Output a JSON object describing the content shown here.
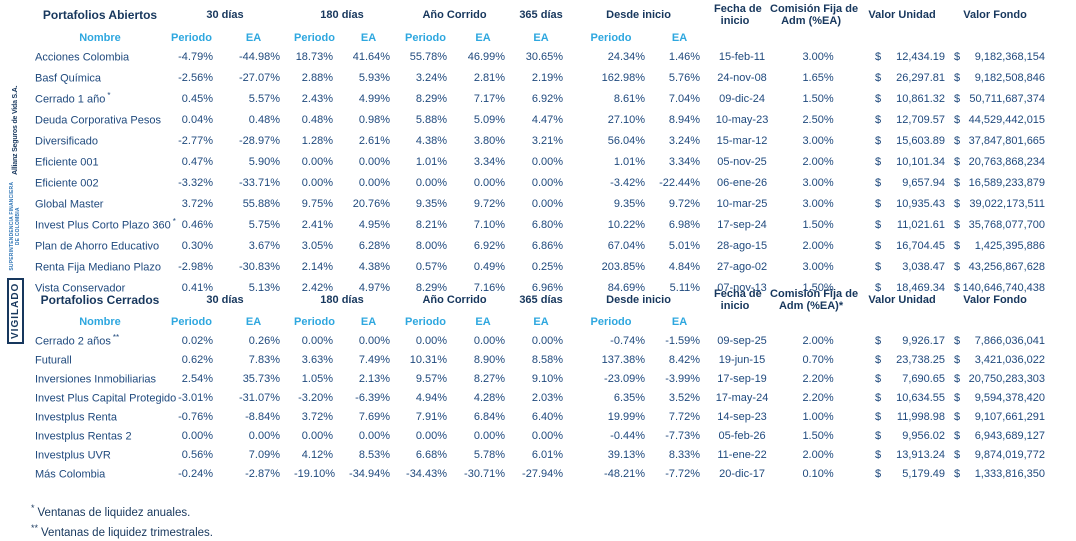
{
  "currency_symbol": "$",
  "colors": {
    "header_navy": "#17375D",
    "data_navy": "#1F497D",
    "accent_blue": "#2EA7DF",
    "brand_blue": "#2E74B5"
  },
  "sidebar": {
    "vigilado": "VIGILADO",
    "superintendencia_line1": "SUPERINTENDENCIA FINANCIERA",
    "superintendencia_line2": "DE COLOMBIA",
    "company": "Allianz Seguros de Vida S.A."
  },
  "footnotes": [
    {
      "mark": "*",
      "text": "Ventanas de liquidez anuales."
    },
    {
      "mark": "**",
      "text": "Ventanas de liquidez trimestrales."
    }
  ],
  "tables": [
    {
      "title": "Portafolios Abiertos",
      "group_headers": {
        "d30": "30 días",
        "d180": "180 días",
        "ano_corrido": "Año Corrido",
        "d365": "365 días",
        "desde_inicio": "Desde inicio",
        "fecha_line1": "Fecha de",
        "fecha_line2": "inicio",
        "comision_line1": "Comisión Fija de",
        "comision_line2": "Adm (%EA)",
        "valor_unidad": "Valor Unidad",
        "valor_fondo": "Valor Fondo"
      },
      "sub_headers": {
        "nombre": "Nombre",
        "periodo": "Periodo",
        "ea": "EA"
      },
      "rows": [
        {
          "name": "Acciones Colombia",
          "mark": "",
          "pct": [
            "-4.79%",
            "-44.98%",
            "18.73%",
            "41.64%",
            "55.78%",
            "46.99%",
            "30.65%",
            "24.34%",
            "1.46%"
          ],
          "fecha_inicio": "15-feb-11",
          "comision": "3.00%",
          "valor_unidad": "12,434.19",
          "valor_fondo": "9,182,368,154"
        },
        {
          "name": "Basf Química",
          "mark": "",
          "pct": [
            "-2.56%",
            "-27.07%",
            "2.88%",
            "5.93%",
            "3.24%",
            "2.81%",
            "2.19%",
            "162.98%",
            "5.76%"
          ],
          "fecha_inicio": "24-nov-08",
          "comision": "1.65%",
          "valor_unidad": "26,297.81",
          "valor_fondo": "9,182,508,846"
        },
        {
          "name": "Cerrado 1 año",
          "mark": "*",
          "pct": [
            "0.45%",
            "5.57%",
            "2.43%",
            "4.99%",
            "8.29%",
            "7.17%",
            "6.92%",
            "8.61%",
            "7.04%"
          ],
          "fecha_inicio": "09-dic-24",
          "comision": "1.50%",
          "valor_unidad": "10,861.32",
          "valor_fondo": "50,711,687,374"
        },
        {
          "name": "Deuda Corporativa Pesos",
          "mark": "",
          "pct": [
            "0.04%",
            "0.48%",
            "0.48%",
            "0.98%",
            "5.88%",
            "5.09%",
            "4.47%",
            "27.10%",
            "8.94%"
          ],
          "fecha_inicio": "10-may-23",
          "comision": "2.50%",
          "valor_unidad": "12,709.57",
          "valor_fondo": "44,529,442,015"
        },
        {
          "name": "Diversificado",
          "mark": "",
          "pct": [
            "-2.77%",
            "-28.97%",
            "1.28%",
            "2.61%",
            "4.38%",
            "3.80%",
            "3.21%",
            "56.04%",
            "3.24%"
          ],
          "fecha_inicio": "15-mar-12",
          "comision": "3.00%",
          "valor_unidad": "15,603.89",
          "valor_fondo": "37,847,801,665"
        },
        {
          "name": "Eficiente 001",
          "mark": "",
          "pct": [
            "0.47%",
            "5.90%",
            "0.00%",
            "0.00%",
            "1.01%",
            "3.34%",
            "0.00%",
            "1.01%",
            "3.34%"
          ],
          "fecha_inicio": "05-nov-25",
          "comision": "2.00%",
          "valor_unidad": "10,101.34",
          "valor_fondo": "20,763,868,234"
        },
        {
          "name": "Eficiente 002",
          "mark": "",
          "pct": [
            "-3.32%",
            "-33.71%",
            "0.00%",
            "0.00%",
            "0.00%",
            "0.00%",
            "0.00%",
            "-3.42%",
            "-22.44%"
          ],
          "fecha_inicio": "06-ene-26",
          "comision": "3.00%",
          "valor_unidad": "9,657.94",
          "valor_fondo": "16,589,233,879"
        },
        {
          "name": "Global Master",
          "mark": "",
          "pct": [
            "3.72%",
            "55.88%",
            "9.75%",
            "20.76%",
            "9.35%",
            "9.72%",
            "0.00%",
            "9.35%",
            "9.72%"
          ],
          "fecha_inicio": "10-mar-25",
          "comision": "3.00%",
          "valor_unidad": "10,935.43",
          "valor_fondo": "39,022,173,511"
        },
        {
          "name": "Invest Plus Corto Plazo 360",
          "mark": "*",
          "pct": [
            "0.46%",
            "5.75%",
            "2.41%",
            "4.95%",
            "8.21%",
            "7.10%",
            "6.80%",
            "10.22%",
            "6.98%"
          ],
          "fecha_inicio": "17-sep-24",
          "comision": "1.50%",
          "valor_unidad": "11,021.61",
          "valor_fondo": "35,768,077,700"
        },
        {
          "name": "Plan de Ahorro Educativo",
          "mark": "",
          "pct": [
            "0.30%",
            "3.67%",
            "3.05%",
            "6.28%",
            "8.00%",
            "6.92%",
            "6.86%",
            "67.04%",
            "5.01%"
          ],
          "fecha_inicio": "28-ago-15",
          "comision": "2.00%",
          "valor_unidad": "16,704.45",
          "valor_fondo": "1,425,395,886"
        },
        {
          "name": "Renta Fija Mediano Plazo",
          "mark": "",
          "pct": [
            "-2.98%",
            "-30.83%",
            "2.14%",
            "4.38%",
            "0.57%",
            "0.49%",
            "0.25%",
            "203.85%",
            "4.84%"
          ],
          "fecha_inicio": "27-ago-02",
          "comision": "3.00%",
          "valor_unidad": "3,038.47",
          "valor_fondo": "43,256,867,628"
        },
        {
          "name": "Vista Conservador",
          "mark": "",
          "pct": [
            "0.41%",
            "5.13%",
            "2.42%",
            "4.97%",
            "8.29%",
            "7.16%",
            "6.96%",
            "84.69%",
            "5.11%"
          ],
          "fecha_inicio": "07-nov-13",
          "comision": "1.50%",
          "valor_unidad": "18,469.34",
          "valor_fondo": "140,646,740,438"
        }
      ]
    },
    {
      "title": "Portafolios Cerrados",
      "group_headers": {
        "d30": "30 días",
        "d180": "180 días",
        "ano_corrido": "Año Corrido",
        "d365": "365 días",
        "desde_inicio": "Desde inicio",
        "fecha_line1": "Fecha de",
        "fecha_line2": "inicio",
        "comision_line1": "Comisión Fija de",
        "comision_line2": "Adm (%EA)*",
        "valor_unidad": "Valor Unidad",
        "valor_fondo": "Valor Fondo"
      },
      "sub_headers": {
        "nombre": "Nombre",
        "periodo": "Periodo",
        "ea": "EA"
      },
      "rows": [
        {
          "name": "Cerrado 2 años",
          "mark": "**",
          "pct": [
            "0.02%",
            "0.26%",
            "0.00%",
            "0.00%",
            "0.00%",
            "0.00%",
            "0.00%",
            "-0.74%",
            "-1.59%"
          ],
          "fecha_inicio": "09-sep-25",
          "comision": "2.00%",
          "valor_unidad": "9,926.17",
          "valor_fondo": "7,866,036,041"
        },
        {
          "name": "Futurall",
          "mark": "",
          "pct": [
            "0.62%",
            "7.83%",
            "3.63%",
            "7.49%",
            "10.31%",
            "8.90%",
            "8.58%",
            "137.38%",
            "8.42%"
          ],
          "fecha_inicio": "19-jun-15",
          "comision": "0.70%",
          "valor_unidad": "23,738.25",
          "valor_fondo": "3,421,036,022"
        },
        {
          "name": "Inversiones Inmobiliarias",
          "mark": "",
          "pct": [
            "2.54%",
            "35.73%",
            "1.05%",
            "2.13%",
            "9.57%",
            "8.27%",
            "9.10%",
            "-23.09%",
            "-3.99%"
          ],
          "fecha_inicio": "17-sep-19",
          "comision": "2.20%",
          "valor_unidad": "7,690.65",
          "valor_fondo": "20,750,283,303"
        },
        {
          "name": "Invest Plus Capital Protegido",
          "mark": "",
          "pct": [
            "-3.01%",
            "-31.07%",
            "-3.20%",
            "-6.39%",
            "4.94%",
            "4.28%",
            "2.03%",
            "6.35%",
            "3.52%"
          ],
          "fecha_inicio": "17-may-24",
          "comision": "2.20%",
          "valor_unidad": "10,634.55",
          "valor_fondo": "9,594,378,420"
        },
        {
          "name": "Investplus Renta",
          "mark": "",
          "pct": [
            "-0.76%",
            "-8.84%",
            "3.72%",
            "7.69%",
            "7.91%",
            "6.84%",
            "6.40%",
            "19.99%",
            "7.72%"
          ],
          "fecha_inicio": "14-sep-23",
          "comision": "1.00%",
          "valor_unidad": "11,998.98",
          "valor_fondo": "9,107,661,291"
        },
        {
          "name": "Investplus Rentas 2",
          "mark": "",
          "pct": [
            "0.00%",
            "0.00%",
            "0.00%",
            "0.00%",
            "0.00%",
            "0.00%",
            "0.00%",
            "-0.44%",
            "-7.73%"
          ],
          "fecha_inicio": "05-feb-26",
          "comision": "1.50%",
          "valor_unidad": "9,956.02",
          "valor_fondo": "6,943,689,127"
        },
        {
          "name": "Investplus UVR",
          "mark": "",
          "pct": [
            "0.56%",
            "7.09%",
            "4.12%",
            "8.53%",
            "6.68%",
            "5.78%",
            "6.01%",
            "39.13%",
            "8.33%"
          ],
          "fecha_inicio": "11-ene-22",
          "comision": "2.00%",
          "valor_unidad": "13,913.24",
          "valor_fondo": "9,874,019,772"
        },
        {
          "name": "Más Colombia",
          "mark": "",
          "pct": [
            "-0.24%",
            "-2.87%",
            "-19.10%",
            "-34.94%",
            "-34.43%",
            "-30.71%",
            "-27.94%",
            "-48.21%",
            "-7.72%"
          ],
          "fecha_inicio": "20-dic-17",
          "comision": "0.10%",
          "valor_unidad": "5,179.49",
          "valor_fondo": "1,333,816,350"
        }
      ]
    }
  ]
}
